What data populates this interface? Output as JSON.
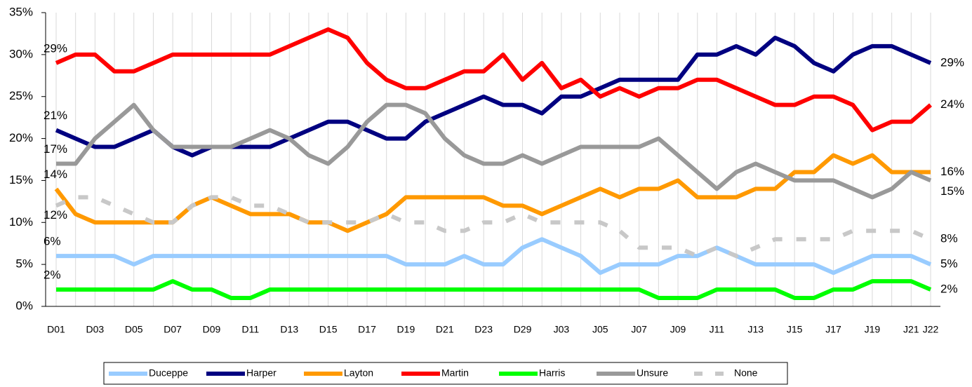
{
  "chart_data": {
    "type": "line",
    "categories": [
      "D01",
      null,
      "D03",
      null,
      "D05",
      null,
      "D07",
      null,
      "D09",
      null,
      "D11",
      null,
      "D13",
      null,
      "D15",
      null,
      "D17",
      null,
      "D19",
      null,
      "D21",
      null,
      "D23",
      null,
      "D29",
      null,
      "J03",
      null,
      "J05",
      null,
      "J07",
      null,
      "J09",
      null,
      "J11",
      null,
      "J13",
      null,
      "J15",
      null,
      "J17",
      null,
      "J19",
      null,
      "J21",
      "J22"
    ],
    "ylim": [
      0,
      35
    ],
    "yticks": [
      {
        "value": 0,
        "label": "0%"
      },
      {
        "value": 5,
        "label": "5%"
      },
      {
        "value": 10,
        "label": "10%"
      },
      {
        "value": 15,
        "label": "15%"
      },
      {
        "value": 20,
        "label": "20%"
      },
      {
        "value": 25,
        "label": "25%"
      },
      {
        "value": 30,
        "label": "30%"
      },
      {
        "value": 35,
        "label": "35%"
      }
    ],
    "grid": "x",
    "legend": "bottom",
    "series": [
      {
        "name": "Duceppe",
        "color": "#99ccff",
        "style": "solid",
        "values": [
          6,
          6,
          6,
          6,
          5,
          6,
          6,
          6,
          6,
          6,
          6,
          6,
          6,
          6,
          6,
          6,
          6,
          6,
          5,
          5,
          5,
          6,
          5,
          5,
          7,
          8,
          7,
          6,
          4,
          5,
          5,
          5,
          6,
          6,
          7,
          6,
          5,
          5,
          5,
          5,
          4,
          5,
          6,
          6,
          6,
          5
        ],
        "value_labels": [
          "6%",
          null,
          null,
          null,
          null,
          null,
          null,
          null,
          null,
          null,
          null,
          null,
          null,
          null,
          null,
          null,
          null,
          null,
          null,
          null,
          null,
          null,
          null,
          null,
          null,
          null,
          null,
          null,
          null,
          null,
          null,
          null,
          null,
          null,
          null,
          null,
          null,
          null,
          null,
          null,
          null,
          null,
          null,
          null,
          null,
          "5%"
        ]
      },
      {
        "name": "Harper",
        "color": "#000080",
        "style": "solid",
        "values": [
          21,
          20,
          19,
          19,
          20,
          21,
          19,
          18,
          19,
          19,
          19,
          19,
          20,
          21,
          22,
          22,
          21,
          20,
          20,
          22,
          23,
          24,
          25,
          24,
          24,
          23,
          25,
          25,
          26,
          27,
          27,
          27,
          27,
          30,
          30,
          31,
          30,
          32,
          31,
          29,
          28,
          30,
          31,
          31,
          30,
          29
        ],
        "value_labels": [
          "21%",
          null,
          null,
          null,
          null,
          null,
          null,
          null,
          null,
          null,
          null,
          null,
          null,
          null,
          null,
          null,
          null,
          null,
          null,
          null,
          null,
          null,
          null,
          null,
          null,
          null,
          null,
          null,
          null,
          null,
          null,
          null,
          null,
          null,
          null,
          null,
          null,
          null,
          null,
          null,
          null,
          null,
          null,
          null,
          null,
          "29%"
        ]
      },
      {
        "name": "Layton",
        "color": "#ff9900",
        "style": "solid",
        "values": [
          14,
          11,
          10,
          10,
          10,
          10,
          10,
          12,
          13,
          12,
          11,
          11,
          11,
          10,
          10,
          9,
          10,
          11,
          13,
          13,
          13,
          13,
          13,
          12,
          12,
          11,
          12,
          13,
          14,
          13,
          14,
          14,
          15,
          13,
          13,
          13,
          14,
          14,
          16,
          16,
          18,
          17,
          18,
          16,
          16,
          16
        ],
        "value_labels": [
          "14%",
          null,
          null,
          null,
          null,
          null,
          null,
          null,
          null,
          null,
          null,
          null,
          null,
          null,
          null,
          null,
          null,
          null,
          null,
          null,
          null,
          null,
          null,
          null,
          null,
          null,
          null,
          null,
          null,
          null,
          null,
          null,
          null,
          null,
          null,
          null,
          null,
          null,
          null,
          null,
          null,
          null,
          null,
          null,
          null,
          "16%"
        ]
      },
      {
        "name": "Martin",
        "color": "#ff0000",
        "style": "solid",
        "values": [
          29,
          30,
          30,
          28,
          28,
          29,
          30,
          30,
          30,
          30,
          30,
          30,
          31,
          32,
          33,
          32,
          29,
          27,
          26,
          26,
          27,
          28,
          28,
          30,
          27,
          29,
          26,
          27,
          25,
          26,
          25,
          26,
          26,
          27,
          27,
          26,
          25,
          24,
          24,
          25,
          25,
          24,
          21,
          22,
          22,
          24
        ],
        "value_labels": [
          "29%",
          null,
          null,
          null,
          null,
          null,
          null,
          null,
          null,
          null,
          null,
          null,
          null,
          null,
          null,
          null,
          null,
          null,
          null,
          null,
          null,
          null,
          null,
          null,
          null,
          null,
          null,
          null,
          null,
          null,
          null,
          null,
          null,
          null,
          null,
          null,
          null,
          null,
          null,
          null,
          null,
          null,
          null,
          null,
          null,
          "24%"
        ]
      },
      {
        "name": "Harris",
        "color": "#00ff00",
        "style": "solid",
        "values": [
          2,
          2,
          2,
          2,
          2,
          2,
          3,
          2,
          2,
          1,
          1,
          2,
          2,
          2,
          2,
          2,
          2,
          2,
          2,
          2,
          2,
          2,
          2,
          2,
          2,
          2,
          2,
          2,
          2,
          2,
          2,
          1,
          1,
          1,
          2,
          2,
          2,
          2,
          1,
          1,
          2,
          2,
          3,
          3,
          3,
          2
        ],
        "value_labels": [
          "2%",
          null,
          null,
          null,
          null,
          null,
          null,
          null,
          null,
          null,
          null,
          null,
          null,
          null,
          null,
          null,
          null,
          null,
          null,
          null,
          null,
          null,
          null,
          null,
          null,
          null,
          null,
          null,
          null,
          null,
          null,
          null,
          null,
          null,
          null,
          null,
          null,
          null,
          null,
          null,
          null,
          null,
          null,
          null,
          null,
          "2%"
        ]
      },
      {
        "name": "Unsure",
        "color": "#999999",
        "style": "solid",
        "values": [
          17,
          17,
          20,
          22,
          24,
          21,
          19,
          19,
          19,
          19,
          20,
          21,
          20,
          18,
          17,
          19,
          22,
          24,
          24,
          23,
          20,
          18,
          17,
          17,
          18,
          17,
          18,
          19,
          19,
          19,
          19,
          20,
          18,
          16,
          14,
          16,
          17,
          16,
          15,
          15,
          15,
          14,
          13,
          14,
          16,
          15
        ],
        "value_labels": [
          "17%",
          null,
          null,
          null,
          null,
          null,
          null,
          null,
          null,
          null,
          null,
          null,
          null,
          null,
          null,
          null,
          null,
          null,
          null,
          null,
          null,
          null,
          null,
          null,
          null,
          null,
          null,
          null,
          null,
          null,
          null,
          null,
          null,
          null,
          null,
          null,
          null,
          null,
          null,
          null,
          null,
          null,
          null,
          null,
          null,
          "15%"
        ]
      },
      {
        "name": "None",
        "color": "#c8c8c8",
        "style": "dashed",
        "values": [
          12,
          13,
          13,
          12,
          11,
          10,
          10,
          12,
          13,
          13,
          12,
          12,
          11,
          10,
          10,
          10,
          10,
          11,
          10,
          10,
          9,
          9,
          10,
          10,
          11,
          10,
          10,
          10,
          10,
          9,
          7,
          7,
          7,
          6,
          7,
          6,
          7,
          8,
          8,
          8,
          8,
          9,
          9,
          9,
          9,
          8
        ],
        "value_labels": [
          "12%",
          null,
          null,
          null,
          null,
          null,
          null,
          null,
          null,
          null,
          null,
          null,
          null,
          null,
          null,
          null,
          null,
          null,
          null,
          null,
          null,
          null,
          null,
          null,
          null,
          null,
          null,
          null,
          null,
          null,
          null,
          null,
          null,
          null,
          null,
          null,
          null,
          null,
          null,
          null,
          null,
          null,
          null,
          null,
          null,
          "8%"
        ]
      }
    ]
  }
}
